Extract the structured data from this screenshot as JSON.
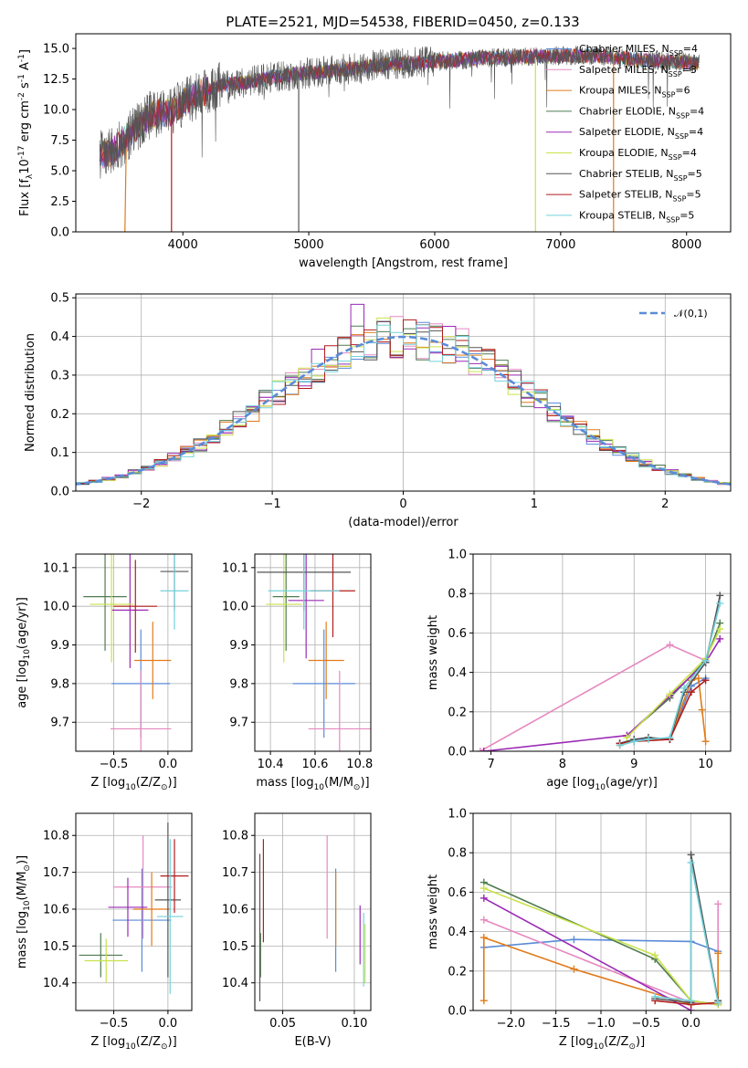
{
  "figure_title": "PLATE=2521, MJD=54538, FIBERID=0450, z=0.133",
  "colors": {
    "Chabrier MILES": "#5b8bd8",
    "Salpeter MILES": "#e589c0",
    "Kroupa MILES": "#e07b1a",
    "Chabrier ELODIE": "#4f7c50",
    "Salpeter ELODIE": "#9b2ab5",
    "Kroupa ELODIE": "#c9e24a",
    "Chabrier STELIB": "#555555",
    "Salpeter STELIB": "#b21c1c",
    "Kroupa STELIB": "#73d2db",
    "normal": "#5b8bd8"
  },
  "chart_data": [
    {
      "type": "line",
      "panel": "spectrum",
      "title": "PLATE=2521, MJD=54538, FIBERID=0450, z=0.133",
      "xlabel": "wavelength [Angstrom, rest frame]",
      "ylabel": "Flux [f$_\\lambda$10$^{-17}$ erg cm$^{-2}$ s$^{-1}$ A$^{-1}$]",
      "xlim": [
        3150,
        8350
      ],
      "ylim": [
        0,
        16.2
      ],
      "xticks": [
        4000,
        5000,
        6000,
        7000,
        8000
      ],
      "yticks": [
        0.0,
        2.5,
        5.0,
        7.5,
        10.0,
        12.5,
        15.0
      ],
      "grid": false,
      "legend_position": "top-right",
      "continuum": {
        "x": [
          3340,
          3450,
          3600,
          3750,
          3900,
          4000,
          4150,
          4300,
          4500,
          4700,
          4900,
          5100,
          5300,
          5500,
          5800,
          6100,
          6400,
          6700,
          7000,
          7300,
          7600,
          7900,
          8100
        ],
        "y": [
          6.3,
          6.6,
          8.2,
          9.6,
          9.8,
          10.6,
          11.4,
          12.0,
          12.2,
          12.6,
          12.9,
          13.1,
          13.3,
          13.6,
          13.8,
          14.0,
          14.2,
          14.3,
          14.4,
          14.4,
          14.1,
          13.9,
          13.8
        ]
      },
      "series": [
        {
          "name": "Chabrier MILES, N$_{SSP}$=4",
          "edge_x": [],
          "edge_y": []
        },
        {
          "name": "Salpeter MILES, N$_{SSP}$=3",
          "edge_x": [],
          "edge_y": []
        },
        {
          "name": "Kroupa MILES, N$_{SSP}$=6",
          "edge_x": [
            3540,
            3550,
            7420,
            7420
          ],
          "edge_y": [
            0,
            6.8,
            14.3,
            0
          ]
        },
        {
          "name": "Chabrier ELODIE, N$_{SSP}$=4",
          "edge_x": [],
          "edge_y": []
        },
        {
          "name": "Salpeter ELODIE, N$_{SSP}$=4",
          "edge_x": [],
          "edge_y": []
        },
        {
          "name": "Kroupa ELODIE, N$_{SSP}$=4",
          "edge_x": [
            6800,
            6800
          ],
          "edge_y": [
            14.3,
            0
          ]
        },
        {
          "name": "Chabrier STELIB, N$_{SSP}$=5",
          "edge_x": [
            4920,
            4920
          ],
          "edge_y": [
            12.8,
            0
          ]
        },
        {
          "name": "Salpeter STELIB, N$_{SSP}$=5",
          "edge_x": [
            3910,
            3910
          ],
          "edge_y": [
            10.0,
            0
          ]
        },
        {
          "name": "Kroupa STELIB, N$_{SSP}$=5",
          "edge_x": [],
          "edge_y": []
        }
      ],
      "legend": [
        "Chabrier MILES, N$_{SSP}$=4",
        "Salpeter MILES, N$_{SSP}$=3",
        "Kroupa MILES, N$_{SSP}$=6",
        "Chabrier ELODIE, N$_{SSP}$=4",
        "Salpeter ELODIE, N$_{SSP}$=4",
        "Kroupa ELODIE, N$_{SSP}$=4",
        "Chabrier STELIB, N$_{SSP}$=5",
        "Salpeter STELIB, N$_{SSP}$=5",
        "Kroupa STELIB, N$_{SSP}$=5"
      ]
    },
    {
      "type": "histogram",
      "panel": "residuals",
      "xlabel": "(data-model)/error",
      "ylabel": "Normed distribution",
      "xlim": [
        -2.5,
        2.5
      ],
      "ylim": [
        0,
        0.51
      ],
      "xticks": [
        -2,
        -1,
        0,
        1,
        2
      ],
      "yticks": [
        0.0,
        0.1,
        0.2,
        0.3,
        0.4,
        0.5
      ],
      "grid": true,
      "legend_position": "top-right",
      "legend": [
        "$\\mathcal{N}(0,1)$"
      ],
      "bin_width": 0.1,
      "bin_start": -2.5,
      "spike_bins": {
        "-0.3": 0.483,
        "0.5": 0.42,
        "0.1": 0.42,
        "-0.8": 0.35
      }
    },
    {
      "type": "errorbar",
      "panel": "age-vs-Z",
      "xlabel": "Z [log$_{10}$(Z/Z$_\\odot$)]",
      "ylabel": "age  [log$_{10}$(age/yr)]",
      "xlim": [
        -0.85,
        0.22
      ],
      "ylim": [
        9.625,
        10.135
      ],
      "xticks": [
        -0.5,
        0.0
      ],
      "yticks": [
        9.7,
        9.8,
        9.9,
        10.0,
        10.1
      ],
      "grid": true,
      "points": [
        {
          "model": "Chabrier MILES",
          "x": -0.25,
          "xerr": 0.27,
          "y": 9.8,
          "yerr": 0.14
        },
        {
          "model": "Salpeter MILES",
          "x": -0.25,
          "xerr": 0.28,
          "y": 9.683,
          "yerr": 0.15
        },
        {
          "model": "Kroupa MILES",
          "x": -0.14,
          "xerr": 0.17,
          "y": 9.86,
          "yerr": 0.1
        },
        {
          "model": "Chabrier ELODIE",
          "x": -0.58,
          "xerr": 0.2,
          "y": 10.025,
          "yerr": 0.14
        },
        {
          "model": "Salpeter ELODIE",
          "x": -0.35,
          "xerr": 0.17,
          "y": 9.99,
          "yerr": 0.15
        },
        {
          "model": "Kroupa ELODIE",
          "x": -0.52,
          "xerr": 0.2,
          "y": 10.005,
          "yerr": 0.15
        },
        {
          "model": "Chabrier STELIB",
          "x": 0.06,
          "xerr": 0.13,
          "y": 10.09,
          "yerr": 0.1
        },
        {
          "model": "Salpeter STELIB",
          "x": -0.3,
          "xerr": 0.2,
          "y": 10.0,
          "yerr": 0.12
        },
        {
          "model": "Kroupa STELIB",
          "x": 0.06,
          "xerr": 0.13,
          "y": 10.04,
          "yerr": 0.1
        }
      ]
    },
    {
      "type": "errorbar",
      "panel": "age-vs-mass",
      "xlabel": "mass [log$_{10}$(M/M$_\\odot$)]",
      "ylabel": "",
      "xlim": [
        10.33,
        10.85
      ],
      "ylim": [
        9.625,
        10.135
      ],
      "xticks": [
        10.4,
        10.6,
        10.8
      ],
      "yticks": [
        9.7,
        9.8,
        9.9,
        10.0,
        10.1
      ],
      "grid": true,
      "points": [
        {
          "model": "Chabrier MILES",
          "x": 10.64,
          "xerr": 0.14,
          "y": 9.8,
          "yerr": 0.14
        },
        {
          "model": "Salpeter MILES",
          "x": 10.71,
          "xerr": 0.14,
          "y": 9.683,
          "yerr": 0.15
        },
        {
          "model": "Kroupa MILES",
          "x": 10.65,
          "xerr": 0.08,
          "y": 9.86,
          "yerr": 0.1
        },
        {
          "model": "Chabrier ELODIE",
          "x": 10.47,
          "xerr": 0.06,
          "y": 10.025,
          "yerr": 0.14
        },
        {
          "model": "Salpeter ELODIE",
          "x": 10.56,
          "xerr": 0.08,
          "y": 10.015,
          "yerr": 0.15
        },
        {
          "model": "Kroupa ELODIE",
          "x": 10.46,
          "xerr": 0.08,
          "y": 10.005,
          "yerr": 0.15
        },
        {
          "model": "Chabrier STELIB",
          "x": 10.55,
          "xerr": 0.21,
          "y": 10.088,
          "yerr": 0.1
        },
        {
          "model": "Salpeter STELIB",
          "x": 10.68,
          "xerr": 0.1,
          "y": 10.04,
          "yerr": 0.12
        },
        {
          "model": "Kroupa STELIB",
          "x": 10.55,
          "xerr": 0.16,
          "y": 10.04,
          "yerr": 0.1
        }
      ]
    },
    {
      "type": "line",
      "panel": "mass-weight-vs-age",
      "xlabel": "age  [log$_{10}$(age/yr)]",
      "ylabel": "mass weight",
      "xlim": [
        6.75,
        10.35
      ],
      "ylim": [
        0,
        1.0
      ],
      "xticks": [
        7,
        8,
        9,
        10
      ],
      "yticks": [
        0.0,
        0.2,
        0.4,
        0.6,
        0.8,
        1.0
      ],
      "grid": true,
      "series": [
        {
          "model": "Chabrier MILES",
          "x": [
            8.8,
            9.0,
            9.5,
            9.8,
            10.0
          ],
          "y": [
            0.04,
            0.06,
            0.06,
            0.33,
            0.37
          ]
        },
        {
          "model": "Salpeter MILES",
          "x": [
            6.85,
            9.5,
            10.0
          ],
          "y": [
            0.0,
            0.54,
            0.46
          ]
        },
        {
          "model": "Kroupa MILES",
          "x": [
            8.8,
            9.0,
            9.5,
            9.8,
            9.9,
            9.95,
            10.0
          ],
          "y": [
            0.03,
            0.05,
            0.06,
            0.36,
            0.37,
            0.21,
            0.05
          ]
        },
        {
          "model": "Chabrier ELODIE",
          "x": [
            8.9,
            9.5,
            10.0,
            10.2
          ],
          "y": [
            0.08,
            0.27,
            0.46,
            0.65
          ]
        },
        {
          "model": "Salpeter ELODIE",
          "x": [
            6.9,
            8.9,
            9.5,
            10.0,
            10.2
          ],
          "y": [
            0.0,
            0.08,
            0.28,
            0.45,
            0.57
          ]
        },
        {
          "model": "Kroupa ELODIE",
          "x": [
            8.9,
            9.5,
            10.0,
            10.2
          ],
          "y": [
            0.07,
            0.29,
            0.47,
            0.62
          ]
        },
        {
          "model": "Chabrier STELIB",
          "x": [
            8.8,
            9.0,
            9.2,
            9.5,
            9.7,
            10.0,
            10.2
          ],
          "y": [
            0.04,
            0.06,
            0.07,
            0.06,
            0.3,
            0.45,
            0.79
          ]
        },
        {
          "model": "Salpeter STELIB",
          "x": [
            8.8,
            9.0,
            9.5,
            9.8,
            10.0
          ],
          "y": [
            0.04,
            0.05,
            0.06,
            0.3,
            0.36
          ]
        },
        {
          "model": "Kroupa STELIB",
          "x": [
            8.8,
            9.0,
            9.2,
            9.5,
            9.7,
            10.0,
            10.2
          ],
          "y": [
            0.03,
            0.05,
            0.06,
            0.07,
            0.32,
            0.46,
            0.75
          ]
        }
      ]
    },
    {
      "type": "errorbar",
      "panel": "mass-vs-Z",
      "xlabel": "Z [log$_{10}$(Z/Z$_\\odot$)]",
      "ylabel": "mass [log$_{10}$(M/M$_\\odot$)]",
      "xlim": [
        -0.85,
        0.22
      ],
      "ylim": [
        10.325,
        10.86
      ],
      "xticks": [
        -0.5,
        0.0
      ],
      "yticks": [
        10.4,
        10.5,
        10.6,
        10.7,
        10.8
      ],
      "grid": true,
      "points": [
        {
          "model": "Chabrier MILES",
          "x": -0.24,
          "xerr": 0.27,
          "y": 10.57,
          "yerr": 0.14
        },
        {
          "model": "Salpeter MILES",
          "x": -0.23,
          "xerr": 0.27,
          "y": 10.66,
          "yerr": 0.14
        },
        {
          "model": "Kroupa MILES",
          "x": -0.15,
          "xerr": 0.17,
          "y": 10.6,
          "yerr": 0.1
        },
        {
          "model": "Chabrier ELODIE",
          "x": -0.62,
          "xerr": 0.2,
          "y": 10.475,
          "yerr": 0.06
        },
        {
          "model": "Salpeter ELODIE",
          "x": -0.37,
          "xerr": 0.18,
          "y": 10.605,
          "yerr": 0.08
        },
        {
          "model": "Kroupa ELODIE",
          "x": -0.57,
          "xerr": 0.2,
          "y": 10.46,
          "yerr": 0.06
        },
        {
          "model": "Chabrier STELIB",
          "x": 0.0,
          "xerr": 0.12,
          "y": 10.625,
          "yerr": 0.21
        },
        {
          "model": "Salpeter STELIB",
          "x": 0.06,
          "xerr": 0.13,
          "y": 10.69,
          "yerr": 0.1
        },
        {
          "model": "Kroupa STELIB",
          "x": 0.02,
          "xerr": 0.12,
          "y": 10.58,
          "yerr": 0.21
        }
      ]
    },
    {
      "type": "errorbar",
      "panel": "mass-vs-EBV",
      "xlabel": "E(B-V)",
      "ylabel": "",
      "xlim": [
        0.0305,
        0.1115
      ],
      "ylim": [
        10.325,
        10.86
      ],
      "xticks": [
        0.05,
        0.1
      ],
      "yticks": [
        10.4,
        10.5,
        10.6,
        10.7,
        10.8
      ],
      "grid": true,
      "points": [
        {
          "model": "Chabrier MILES",
          "x": 0.087,
          "xerr": 0,
          "y": 10.57,
          "yerr": 0.14
        },
        {
          "model": "Salpeter MILES",
          "x": 0.081,
          "xerr": 0,
          "y": 10.66,
          "yerr": 0.14
        },
        {
          "model": "Kroupa MILES",
          "x": 0.087,
          "xerr": 0,
          "y": 10.6,
          "yerr": 0.1
        },
        {
          "model": "Chabrier ELODIE",
          "x": 0.0345,
          "xerr": 0,
          "y": 10.475,
          "yerr": 0.06
        },
        {
          "model": "Salpeter ELODIE",
          "x": 0.104,
          "xerr": 0,
          "y": 10.53,
          "yerr": 0.08
        },
        {
          "model": "Kroupa ELODIE",
          "x": 0.1075,
          "xerr": 0,
          "y": 10.48,
          "yerr": 0.08
        },
        {
          "model": "Chabrier STELIB",
          "x": 0.034,
          "xerr": 0,
          "y": 10.55,
          "yerr": 0.2
        },
        {
          "model": "Salpeter STELIB",
          "x": 0.0365,
          "xerr": 0,
          "y": 10.65,
          "yerr": 0.14
        },
        {
          "model": "Kroupa STELIB",
          "x": 0.1065,
          "xerr": 0,
          "y": 10.49,
          "yerr": 0.1
        }
      ]
    },
    {
      "type": "line",
      "panel": "mass-weight-vs-Z",
      "xlabel": "Z [log$_{10}$(Z/Z$_\\odot$)]",
      "ylabel": "mass weight",
      "xlim": [
        -2.42,
        0.44
      ],
      "ylim": [
        0,
        1.0
      ],
      "xticks": [
        -2.0,
        -1.5,
        -1.0,
        -0.5,
        0.0
      ],
      "yticks": [
        0.0,
        0.2,
        0.4,
        0.6,
        0.8,
        1.0
      ],
      "grid": true,
      "series": [
        {
          "model": "Chabrier MILES",
          "x": [
            -2.3,
            -1.3,
            0.0,
            0.3
          ],
          "y": [
            0.32,
            0.36,
            0.35,
            0.3
          ]
        },
        {
          "model": "Salpeter MILES",
          "x": [
            -2.3,
            0.0,
            0.0,
            0.3,
            0.3
          ],
          "y": [
            0.46,
            0.04,
            0.04,
            0.03,
            0.54
          ]
        },
        {
          "model": "Kroupa MILES",
          "x": [
            -2.3,
            -2.3,
            -1.3,
            0.0,
            0.3,
            0.3
          ],
          "y": [
            0.05,
            0.37,
            0.21,
            0.03,
            0.04,
            0.29
          ]
        },
        {
          "model": "Chabrier ELODIE",
          "x": [
            -2.3,
            -0.4,
            0.0,
            0.3
          ],
          "y": [
            0.65,
            0.26,
            0.05,
            0.03
          ]
        },
        {
          "model": "Salpeter ELODIE",
          "x": [
            -2.3,
            0.0
          ],
          "y": [
            0.57,
            0.0
          ]
        },
        {
          "model": "Kroupa ELODIE",
          "x": [
            -2.3,
            -0.4,
            0.0,
            0.3
          ],
          "y": [
            0.62,
            0.28,
            0.05,
            0.03
          ]
        },
        {
          "model": "Chabrier STELIB",
          "x": [
            -0.4,
            0.0,
            0.0,
            0.3
          ],
          "y": [
            0.06,
            0.04,
            0.79,
            0.05
          ]
        },
        {
          "model": "Salpeter STELIB",
          "x": [
            -0.4,
            0.0,
            0.3
          ],
          "y": [
            0.05,
            0.03,
            0.04
          ]
        },
        {
          "model": "Kroupa STELIB",
          "x": [
            -0.4,
            0.0,
            0.0,
            0.3
          ],
          "y": [
            0.07,
            0.05,
            0.75,
            0.04
          ]
        }
      ]
    }
  ]
}
